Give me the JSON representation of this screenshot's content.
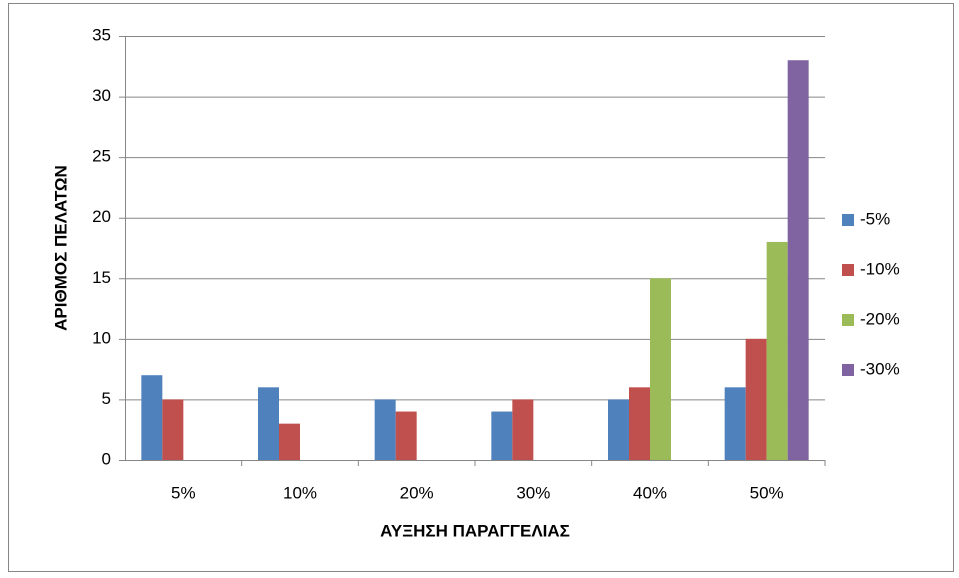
{
  "chart_data": {
    "type": "bar",
    "x_label": "ΑΥΞΗΣΗ ΠΑΡΑΓΓΕΛΙΑΣ",
    "y_label": "ΑΡΙΘΜΟΣ ΠΕΛΑΤΩΝ",
    "categories": [
      "5%",
      "10%",
      "20%",
      "30%",
      "40%",
      "50%"
    ],
    "series": [
      {
        "name": "-5%",
        "color": "#4f81bd",
        "values": [
          7,
          6,
          5,
          4,
          5,
          6
        ]
      },
      {
        "name": "-10%",
        "color": "#c0504d",
        "values": [
          5,
          3,
          4,
          5,
          6,
          10
        ]
      },
      {
        "name": "-20%",
        "color": "#9bbb59",
        "values": [
          0,
          0,
          0,
          0,
          15,
          18
        ]
      },
      {
        "name": "-30%",
        "color": "#8064a2",
        "values": [
          0,
          0,
          0,
          0,
          0,
          33
        ]
      }
    ],
    "ylim": [
      0,
      35
    ],
    "yticks": [
      0,
      5,
      10,
      15,
      20,
      25,
      30,
      35
    ],
    "grid": true,
    "legend": "right"
  }
}
